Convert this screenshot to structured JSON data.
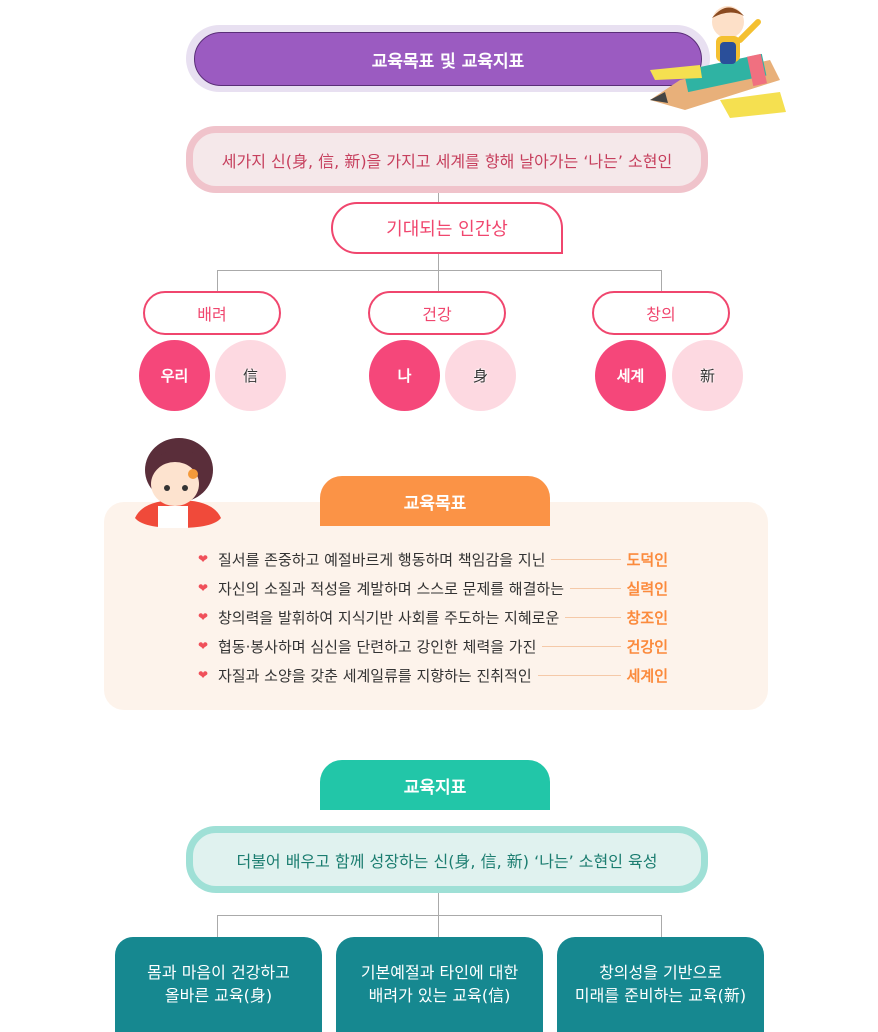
{
  "header": {
    "title": "교육목표 및 교육지표"
  },
  "vision": {
    "text": "세가지 신(身, 信, 新)을 가지고 세계를 향해 날아가는 ‘나는’ 소현인"
  },
  "ideal": {
    "title": "기대되는 인간상",
    "groups": [
      {
        "label": "배려",
        "circles": [
          "우리",
          "信"
        ]
      },
      {
        "label": "건강",
        "circles": [
          "나",
          "身"
        ]
      },
      {
        "label": "창의",
        "circles": [
          "세계",
          "新"
        ]
      }
    ]
  },
  "goals": {
    "title": "교육목표",
    "items": [
      {
        "text": "질서를 존중하고 예절바르게 행동하며 책임감을 지닌",
        "label": "도덕인"
      },
      {
        "text": "자신의 소질과 적성을 계발하며 스스로 문제를 해결하는",
        "label": "실력인"
      },
      {
        "text": "창의력을 발휘하여 지식기반 사회를 주도하는 지혜로운",
        "label": "창조인"
      },
      {
        "text": "협동·봉사하며 심신을 단련하고 강인한 체력을 가진",
        "label": "건강인"
      },
      {
        "text": "자질과 소양을 갖춘 세계일류를 지향하는 진취적인",
        "label": "세계인"
      }
    ]
  },
  "index": {
    "title": "교육지표",
    "text": "더불어 배우고 함께 성장하는 신(身, 信, 新) ‘나는’ 소현인 육성",
    "boxes": [
      {
        "line1": "몸과 마음이 건강하고",
        "line2": "올바른 교육(身)"
      },
      {
        "line1": "기본예절과 타인에 대한",
        "line2": "배려가 있는 교육(信)"
      },
      {
        "line1": "창의성을 기반으로",
        "line2": "미래를 준비하는 교육(新)"
      }
    ]
  },
  "colors": {
    "purple": "#9b5bc1",
    "pink": "#f0466e",
    "orange": "#fb9346",
    "teal": "#22c6a8",
    "dark_teal": "#168890"
  }
}
